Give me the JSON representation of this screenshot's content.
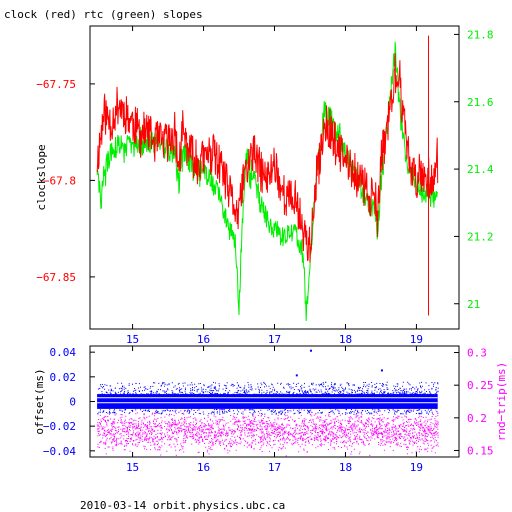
{
  "title": "clock (red) rtc (green) slopes",
  "footer": "2010-03-14  orbit.physics.ubc.ca",
  "colors": {
    "clock": "#ff0000",
    "rtc": "#00ee00",
    "offset": "#0000ff",
    "rndtrip": "#ff00ff",
    "axes": "#000000"
  },
  "chart_data": [
    {
      "id": "slopes",
      "type": "line",
      "xlabel": "",
      "ylabel": "clockslope",
      "y2label": "",
      "xlim": [
        14.4,
        19.6
      ],
      "ylim": [
        -67.877,
        -67.72
      ],
      "y2lim": [
        20.925,
        21.825
      ],
      "xticks": [
        15,
        16,
        17,
        18,
        19
      ],
      "yticks": [
        -67.75,
        -67.8,
        -67.85
      ],
      "ytick_labels": [
        "−67.75",
        "−67.8",
        "−67.85"
      ],
      "y2ticks": [
        21,
        21.2,
        21.4,
        21.6,
        21.8
      ],
      "y2tick_labels": [
        "21",
        "21.2",
        "21.4",
        "21.6",
        "21.8"
      ],
      "series": [
        {
          "name": "clock",
          "axis": "left",
          "x": [
            14.5,
            14.6,
            14.7,
            14.8,
            14.9,
            15.0,
            15.1,
            15.2,
            15.3,
            15.4,
            15.5,
            15.6,
            15.65,
            15.7,
            15.8,
            15.9,
            16.0,
            16.1,
            16.2,
            16.3,
            16.4,
            16.45,
            16.5,
            16.55,
            16.6,
            16.7,
            16.8,
            16.9,
            17.0,
            17.1,
            17.2,
            17.3,
            17.4,
            17.5,
            17.6,
            17.7,
            17.8,
            17.9,
            18.0,
            18.1,
            18.2,
            18.3,
            18.4,
            18.45,
            18.5,
            18.6,
            18.7,
            18.8,
            18.9,
            19.0,
            19.1,
            19.2,
            19.3
          ],
          "y": [
            -67.79,
            -67.765,
            -67.77,
            -67.76,
            -67.765,
            -67.77,
            -67.775,
            -67.775,
            -67.78,
            -67.78,
            -67.78,
            -67.775,
            -67.795,
            -67.775,
            -67.785,
            -67.79,
            -67.79,
            -67.785,
            -67.79,
            -67.8,
            -67.81,
            -67.815,
            -67.82,
            -67.8,
            -67.795,
            -67.785,
            -67.795,
            -67.8,
            -67.79,
            -67.805,
            -67.81,
            -67.81,
            -67.825,
            -67.835,
            -67.8,
            -67.77,
            -67.775,
            -67.785,
            -67.79,
            -67.795,
            -67.8,
            -67.805,
            -67.81,
            -67.825,
            -67.79,
            -67.77,
            -67.745,
            -67.76,
            -67.79,
            -67.8,
            -67.795,
            -67.8,
            -67.79
          ],
          "spikes": [
            {
              "x": 19.17,
              "y_from": -67.725,
              "y_to": -67.87
            }
          ]
        },
        {
          "name": "rtc",
          "axis": "right",
          "x": [
            14.5,
            14.55,
            14.6,
            14.7,
            14.8,
            14.9,
            15.0,
            15.1,
            15.2,
            15.3,
            15.4,
            15.5,
            15.6,
            15.65,
            15.7,
            15.8,
            15.9,
            16.0,
            16.1,
            16.2,
            16.3,
            16.4,
            16.45,
            16.5,
            16.55,
            16.6,
            16.7,
            16.8,
            16.9,
            17.0,
            17.1,
            17.2,
            17.3,
            17.4,
            17.45,
            17.5,
            17.6,
            17.7,
            17.8,
            17.9,
            18.0,
            18.1,
            18.2,
            18.3,
            18.4,
            18.45,
            18.5,
            18.6,
            18.7,
            18.8,
            18.9,
            19.0,
            19.1,
            19.2,
            19.3
          ],
          "y": [
            21.4,
            21.3,
            21.39,
            21.45,
            21.47,
            21.47,
            21.47,
            21.47,
            21.48,
            21.48,
            21.47,
            21.46,
            21.45,
            21.35,
            21.46,
            21.42,
            21.4,
            21.39,
            21.37,
            21.33,
            21.27,
            21.2,
            21.18,
            21.0,
            21.25,
            21.45,
            21.38,
            21.3,
            21.25,
            21.22,
            21.2,
            21.2,
            21.22,
            21.15,
            20.97,
            21.13,
            21.4,
            21.58,
            21.55,
            21.5,
            21.45,
            21.4,
            21.35,
            21.3,
            21.28,
            21.22,
            21.35,
            21.55,
            21.75,
            21.5,
            21.4,
            21.35,
            21.33,
            21.32,
            21.3
          ]
        }
      ]
    },
    {
      "id": "offsets",
      "type": "scatter",
      "xlabel": "",
      "ylabel": "offset(ms)",
      "y2label": "rnd−trip(ms)",
      "xlim": [
        14.4,
        19.6
      ],
      "ylim": [
        -0.045,
        0.045
      ],
      "y2lim": [
        0.14,
        0.31
      ],
      "xticks": [
        15,
        16,
        17,
        18,
        19
      ],
      "yticks": [
        0.04,
        0.02,
        0,
        -0.02,
        -0.04
      ],
      "ytick_labels": [
        "0.04",
        "0.02",
        "0",
        "−0.02",
        "−0.04"
      ],
      "y2ticks": [
        0.3,
        0.25,
        0.2,
        0.15
      ],
      "y2tick_labels": [
        "0.3",
        "0.25",
        "0.2",
        "0.15"
      ],
      "series": [
        {
          "name": "offset",
          "axis": "left",
          "x_range": [
            14.5,
            19.3
          ],
          "y": [
            0.012,
            0.006,
            0.0,
            -0.004,
            0.008,
            0.014,
            -0.006,
            0.003,
            0.016,
            -0.002,
            0.011,
            0.005,
            0.042,
            0.026
          ],
          "band": [
            -0.006,
            0.006
          ],
          "outliers": [
            {
              "x": 17.5,
              "y": 0.042
            },
            {
              "x": 18.5,
              "y": 0.026
            },
            {
              "x": 17.3,
              "y": 0.022
            }
          ]
        },
        {
          "name": "rnd-trip",
          "axis": "right",
          "x_range": [
            14.5,
            19.3
          ],
          "y": [
            0.155,
            0.165,
            0.17,
            0.175,
            0.18,
            0.185,
            0.19,
            0.195,
            0.2,
            0.205
          ],
          "band": [
            0.16,
            0.2
          ]
        }
      ]
    }
  ]
}
